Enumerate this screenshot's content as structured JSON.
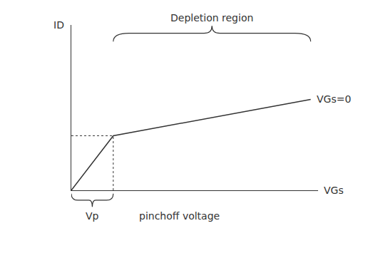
{
  "chart_data": {
    "type": "line",
    "xlabel": "VGs",
    "ylabel": "ID",
    "x": [
      0,
      1.7,
      9.7
    ],
    "series": [
      {
        "name": "VGs=0",
        "color": "#333333",
        "values": [
          0,
          3.3,
          5.5
        ]
      }
    ],
    "xlim": [
      0,
      10
    ],
    "ylim": [
      0,
      10
    ],
    "xticks": [],
    "yticks": [],
    "tick_labels": false,
    "grid": false,
    "annotations": [
      "Depletion region",
      "Vp",
      "pinchoff voltage"
    ]
  }
}
